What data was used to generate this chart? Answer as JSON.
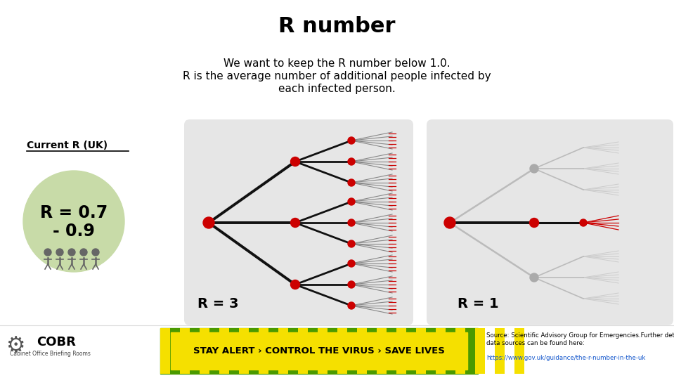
{
  "title": "R number",
  "subtitle_line1": "We want to keep the R number below 1.0.",
  "subtitle_line2": "R is the average number of additional people infected by",
  "subtitle_line3": "each infected person.",
  "current_r_label": "Current R (UK)",
  "r_value_line1": "R = 0.7",
  "r_value_line2": "- 0.9",
  "r3_label": "R = 3",
  "r1_label": "R = 1",
  "bg_color": "#ffffff",
  "panel_color": "#e6e6e6",
  "r3_node_color": "#cc0000",
  "r1_gray_node_color": "#aaaaaa",
  "r3_line_color": "#111111",
  "r1_line_color": "#bbbbbb",
  "r1_active_line_color": "#111111",
  "current_r_circle_color": "#c8dba8",
  "alert_bg": "#f5e000",
  "alert_stripe": "#4a9a00",
  "alert_text": "STAY ALERT › CONTROL THE VIRUS › SAVE LIVES",
  "source_text": "Source: Scientific Advisory Group for Emergencies.Further details on\ndata sources can be found here:",
  "source_url": "https://www.gov.uk/guidance/the-r-number-in-the-uk",
  "cobr_text": "COBR",
  "cobr_subtext": "Cabinet Office Briefing Rooms",
  "fig_width": 9.59,
  "fig_height": 5.38,
  "dpi": 100
}
